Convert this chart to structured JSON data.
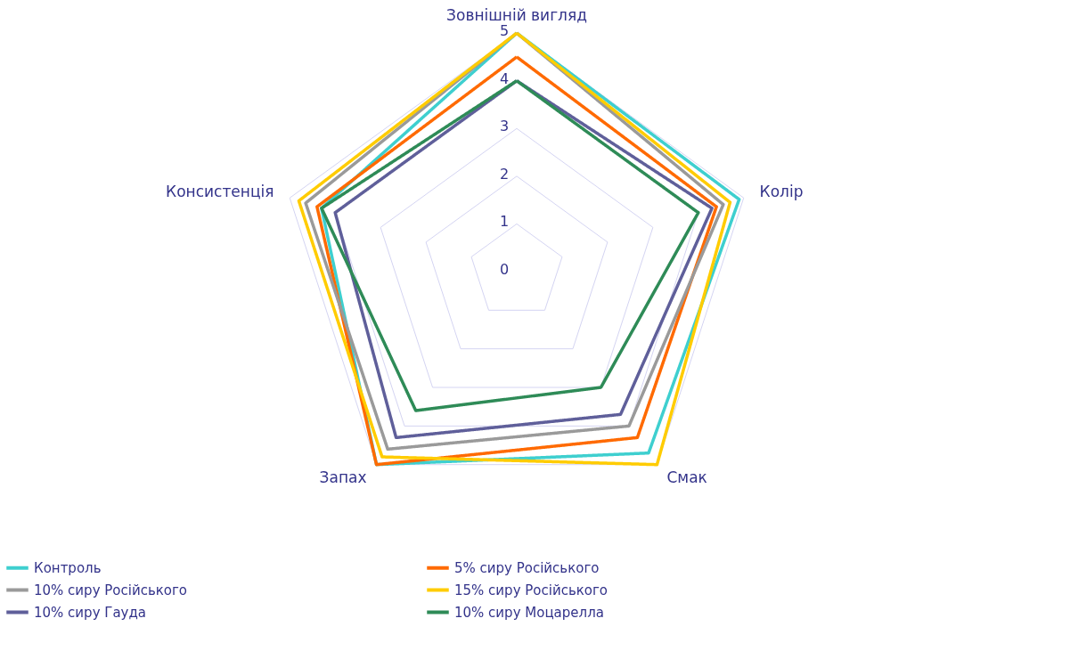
{
  "chart_data": {
    "type": "radar",
    "categories": [
      "Зовнішній вигляд",
      "Колір",
      "Смак",
      "Запах",
      "Консистенція"
    ],
    "ylim": [
      0,
      5
    ],
    "yticks": [
      0,
      1,
      2,
      3,
      4,
      5
    ],
    "grid": true,
    "legend": "bottom",
    "marker": "none",
    "line_style": "solid",
    "series": [
      {
        "name": "Контроль",
        "color": "#3ecfcf",
        "values": [
          5,
          4.9,
          4.7,
          5,
          4.3
        ]
      },
      {
        "name": "5% сиру Російського",
        "color": "#ff6a00",
        "values": [
          4.5,
          4.4,
          4.3,
          5,
          4.4
        ]
      },
      {
        "name": "10% сиру Російського",
        "color": "#9a9a9a",
        "values": [
          5,
          4.55,
          4.0,
          4.6,
          4.65
        ]
      },
      {
        "name": "15% сиру Російського",
        "color": "#ffcc00",
        "values": [
          5,
          4.7,
          5,
          4.8,
          4.8
        ]
      },
      {
        "name": "10% сиру Гауда",
        "color": "#5f5f9a",
        "values": [
          4,
          4.3,
          3.7,
          4.3,
          4.0
        ]
      },
      {
        "name": "10% сиру Моцарелла",
        "color": "#2e8b57",
        "values": [
          4,
          4.0,
          3.0,
          3.6,
          4.3
        ]
      }
    ]
  }
}
